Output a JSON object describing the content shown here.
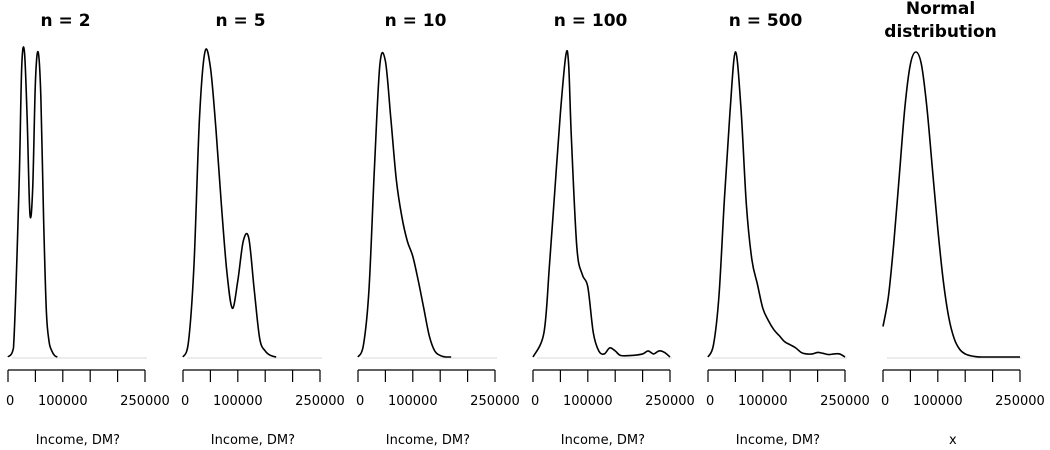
{
  "chart_data": [
    {
      "type": "line",
      "title": "n =  2",
      "xlabel": "Income, DM?",
      "xlim": [
        0,
        250000
      ],
      "x_ticks": [
        0,
        50000,
        100000,
        150000,
        200000,
        250000
      ],
      "x_tick_labels": [
        "0",
        "100000",
        "250000"
      ],
      "x_tick_label_values": [
        0,
        100000,
        250000
      ],
      "ylim": [
        0,
        1
      ],
      "x": [
        0,
        10000,
        20000,
        25000,
        30000,
        35000,
        40000,
        45000,
        50000,
        55000,
        60000,
        65000,
        70000,
        75000,
        80000,
        85000,
        90000
      ],
      "y": [
        0,
        0.03,
        0.55,
        0.95,
        1.0,
        0.78,
        0.47,
        0.55,
        0.9,
        1.0,
        0.85,
        0.45,
        0.15,
        0.05,
        0.02,
        0.005,
        0
      ]
    },
    {
      "type": "line",
      "title": "n =  5",
      "xlabel": "Income, DM?",
      "xlim": [
        0,
        250000
      ],
      "x_ticks": [
        0,
        50000,
        100000,
        150000,
        200000,
        250000
      ],
      "x_tick_labels": [
        "0",
        "100000",
        "250000"
      ],
      "x_tick_label_values": [
        0,
        100000,
        250000
      ],
      "ylim": [
        0,
        1
      ],
      "x": [
        0,
        10000,
        20000,
        30000,
        40000,
        50000,
        60000,
        70000,
        80000,
        90000,
        100000,
        110000,
        120000,
        130000,
        140000,
        150000,
        160000,
        170000
      ],
      "y": [
        0,
        0.05,
        0.3,
        0.78,
        1.0,
        0.95,
        0.75,
        0.5,
        0.28,
        0.16,
        0.25,
        0.38,
        0.39,
        0.22,
        0.06,
        0.02,
        0.005,
        0
      ]
    },
    {
      "type": "line",
      "title": "n =  10",
      "xlabel": "Income, DM?",
      "xlim": [
        0,
        250000
      ],
      "x_ticks": [
        0,
        50000,
        100000,
        150000,
        200000,
        250000
      ],
      "x_tick_labels": [
        "0",
        "100000",
        "250000"
      ],
      "x_tick_label_values": [
        0,
        100000,
        250000
      ],
      "ylim": [
        0,
        1
      ],
      "x": [
        0,
        10000,
        20000,
        30000,
        40000,
        50000,
        60000,
        70000,
        80000,
        90000,
        100000,
        110000,
        120000,
        130000,
        140000,
        150000,
        160000,
        170000
      ],
      "y": [
        0,
        0.04,
        0.22,
        0.62,
        0.96,
        0.97,
        0.78,
        0.58,
        0.46,
        0.38,
        0.33,
        0.25,
        0.16,
        0.07,
        0.02,
        0.005,
        0,
        0
      ]
    },
    {
      "type": "line",
      "title": "n =  100",
      "xlabel": "Income, DM?",
      "xlim": [
        0,
        250000
      ],
      "x_ticks": [
        0,
        50000,
        100000,
        150000,
        200000,
        250000
      ],
      "x_tick_labels": [
        "0",
        "100000",
        "250000"
      ],
      "x_tick_label_values": [
        0,
        100000,
        250000
      ],
      "ylim": [
        0,
        1
      ],
      "x": [
        0,
        20000,
        30000,
        40000,
        50000,
        60000,
        65000,
        70000,
        80000,
        90000,
        100000,
        110000,
        120000,
        130000,
        140000,
        150000,
        160000,
        180000,
        200000,
        210000,
        220000,
        230000,
        240000,
        250000
      ],
      "y": [
        0,
        0.08,
        0.3,
        0.55,
        0.8,
        0.99,
        0.96,
        0.72,
        0.36,
        0.27,
        0.23,
        0.08,
        0.02,
        0.01,
        0.03,
        0.02,
        0.005,
        0.005,
        0.01,
        0.02,
        0.01,
        0.02,
        0.015,
        0
      ]
    },
    {
      "type": "line",
      "title": "n =  500",
      "xlabel": "Income, DM?",
      "xlim": [
        0,
        250000
      ],
      "x_ticks": [
        0,
        50000,
        100000,
        150000,
        200000,
        250000
      ],
      "x_tick_labels": [
        "0",
        "100000",
        "250000"
      ],
      "x_tick_label_values": [
        0,
        100000,
        250000
      ],
      "ylim": [
        0,
        1
      ],
      "x": [
        0,
        10000,
        20000,
        30000,
        40000,
        50000,
        60000,
        70000,
        80000,
        90000,
        100000,
        110000,
        120000,
        130000,
        140000,
        150000,
        160000,
        170000,
        180000,
        190000,
        200000,
        210000,
        220000,
        230000,
        240000,
        250000
      ],
      "y": [
        0,
        0.04,
        0.2,
        0.52,
        0.8,
        1.0,
        0.82,
        0.5,
        0.32,
        0.24,
        0.16,
        0.12,
        0.09,
        0.07,
        0.05,
        0.04,
        0.03,
        0.015,
        0.01,
        0.01,
        0.015,
        0.012,
        0.008,
        0.01,
        0.01,
        0
      ]
    },
    {
      "type": "line",
      "title": "Normal\ndistribution",
      "xlabel": "x",
      "xlim": [
        0,
        250000
      ],
      "x_ticks": [
        0,
        50000,
        100000,
        150000,
        200000,
        250000
      ],
      "x_tick_labels": [
        "0",
        "100000",
        "250000"
      ],
      "x_tick_label_values": [
        0,
        100000,
        250000
      ],
      "ylim": [
        0,
        1
      ],
      "x": [
        0,
        10000,
        20000,
        30000,
        40000,
        50000,
        60000,
        70000,
        80000,
        90000,
        100000,
        110000,
        120000,
        130000,
        140000,
        150000,
        160000,
        170000,
        180000,
        200000,
        220000,
        250000
      ],
      "y": [
        0.1,
        0.2,
        0.38,
        0.6,
        0.82,
        0.96,
        1.0,
        0.96,
        0.82,
        0.62,
        0.42,
        0.25,
        0.13,
        0.06,
        0.025,
        0.01,
        0.004,
        0.001,
        0,
        0,
        0,
        0
      ]
    }
  ]
}
